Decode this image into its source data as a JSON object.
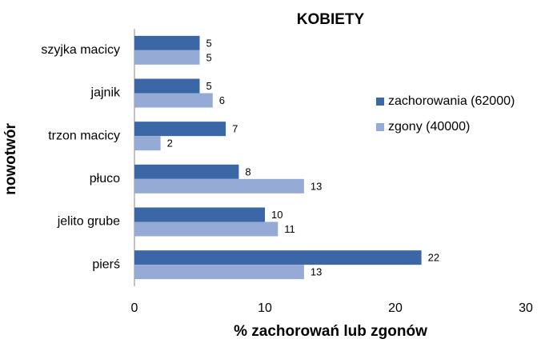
{
  "chart_data": {
    "type": "bar",
    "orientation": "horizontal",
    "title": "KOBIETY",
    "x_label": "% zachorowań lub zgonów",
    "y_label": "nowotwór",
    "categories": [
      "szyjka macicy",
      "jajnik",
      "trzon macicy",
      "płuco",
      "jelito grube",
      "pierś"
    ],
    "series": [
      {
        "name": "zachorowania (62000)",
        "color": "#3c67a6",
        "values": [
          5,
          5,
          7,
          8,
          10,
          22
        ]
      },
      {
        "name": "zgony (40000)",
        "color": "#95abd6",
        "values": [
          5,
          6,
          2,
          13,
          11,
          13
        ]
      }
    ],
    "xlim": [
      0,
      30
    ],
    "xticks": [
      0,
      10,
      20,
      30
    ],
    "grid": false,
    "legend": "right"
  }
}
